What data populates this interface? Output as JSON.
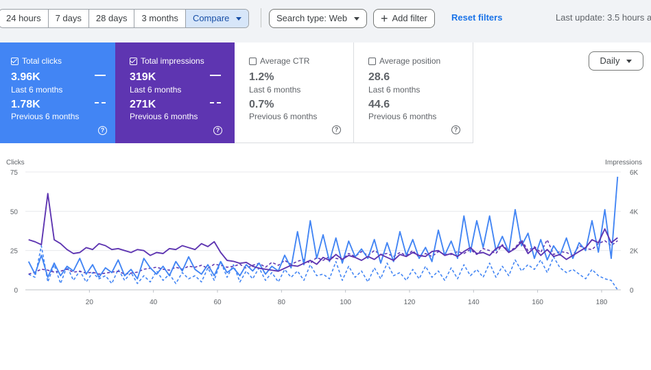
{
  "toolbar": {
    "date_ranges": [
      {
        "label": "24 hours",
        "active": false
      },
      {
        "label": "7 days",
        "active": false
      },
      {
        "label": "28 days",
        "active": false
      },
      {
        "label": "3 months",
        "active": false
      },
      {
        "label": "Compare",
        "active": true
      }
    ],
    "search_type": "Search type: Web",
    "add_filter": "Add filter",
    "reset_filters": "Reset filters",
    "last_update": "Last update: 3.5 hours a"
  },
  "metrics": [
    {
      "label": "Total clicks",
      "checked": true,
      "value": "3.96K",
      "value_caption": "Last 6 months",
      "prev_value": "1.78K",
      "prev_caption": "Previous 6 months",
      "color": "#4285f4"
    },
    {
      "label": "Total impressions",
      "checked": true,
      "value": "319K",
      "value_caption": "Last 6 months",
      "prev_value": "271K",
      "prev_caption": "Previous 6 months",
      "color": "#5e35b1"
    },
    {
      "label": "Average CTR",
      "checked": false,
      "value": "1.2%",
      "value_caption": "Last 6 months",
      "prev_value": "0.7%",
      "prev_caption": "Previous 6 months",
      "color": "#ffffff"
    },
    {
      "label": "Average position",
      "checked": false,
      "value": "28.6",
      "value_caption": "Last 6 months",
      "prev_value": "44.6",
      "prev_caption": "Previous 6 months",
      "color": "#ffffff"
    }
  ],
  "granularity": "Daily",
  "chart_data": {
    "type": "line",
    "ylabel_left": "Clicks",
    "ylabel_right": "Impressions",
    "y_left_ticks": [
      "0",
      "25",
      "50",
      "75"
    ],
    "y_right_ticks": [
      "0",
      "2K",
      "4K",
      "6K"
    ],
    "x_ticks": [
      "20",
      "40",
      "60",
      "80",
      "100",
      "120",
      "140",
      "160",
      "180"
    ],
    "ylim_left": [
      0,
      75
    ],
    "ylim_right": [
      0,
      6000
    ],
    "xlim": [
      0,
      186
    ],
    "grid": true,
    "series": [
      {
        "axis": "left",
        "style": "solid",
        "color": "#4285f4",
        "x": [
          1,
          3,
          5,
          7,
          9,
          11,
          13,
          15,
          17,
          19,
          21,
          23,
          25,
          27,
          29,
          31,
          33,
          35,
          37,
          39,
          41,
          43,
          45,
          47,
          49,
          51,
          53,
          55,
          57,
          59,
          61,
          63,
          65,
          67,
          69,
          71,
          73,
          75,
          77,
          79,
          81,
          83,
          85,
          87,
          89,
          91,
          93,
          95,
          97,
          99,
          101,
          103,
          105,
          107,
          109,
          111,
          113,
          115,
          117,
          119,
          121,
          123,
          125,
          127,
          129,
          131,
          133,
          135,
          137,
          139,
          141,
          143,
          145,
          147,
          149,
          151,
          153,
          155,
          157,
          159,
          161,
          163,
          165,
          167,
          169,
          171,
          173,
          175,
          177,
          179,
          181,
          183,
          185
        ],
        "y": [
          18,
          10,
          22,
          8,
          17,
          9,
          15,
          12,
          20,
          10,
          16,
          8,
          14,
          11,
          19,
          9,
          13,
          7,
          20,
          14,
          10,
          15,
          9,
          18,
          12,
          21,
          13,
          10,
          16,
          9,
          18,
          11,
          14,
          9,
          16,
          12,
          17,
          10,
          15,
          12,
          22,
          14,
          37,
          16,
          44,
          20,
          35,
          18,
          33,
          17,
          31,
          21,
          26,
          20,
          32,
          17,
          30,
          18,
          37,
          22,
          32,
          20,
          27,
          18,
          38,
          22,
          31,
          20,
          47,
          24,
          44,
          27,
          47,
          25,
          34,
          24,
          51,
          28,
          36,
          20,
          32,
          19,
          28,
          22,
          33,
          20,
          30,
          25,
          44,
          24,
          51,
          20,
          72
        ]
      },
      {
        "axis": "right",
        "style": "solid",
        "color": "#5e35b1",
        "x": [
          1,
          3,
          5,
          7,
          9,
          11,
          13,
          15,
          17,
          19,
          21,
          23,
          25,
          27,
          29,
          31,
          33,
          35,
          37,
          39,
          41,
          43,
          45,
          47,
          49,
          51,
          53,
          55,
          57,
          59,
          61,
          63,
          65,
          67,
          69,
          71,
          73,
          75,
          77,
          79,
          81,
          83,
          85,
          87,
          89,
          91,
          93,
          95,
          97,
          99,
          101,
          103,
          105,
          107,
          109,
          111,
          113,
          115,
          117,
          119,
          121,
          123,
          125,
          127,
          129,
          131,
          133,
          135,
          137,
          139,
          141,
          143,
          145,
          147,
          149,
          151,
          153,
          155,
          157,
          159,
          161,
          163,
          165,
          167,
          169,
          171,
          173,
          175,
          177,
          179,
          181,
          183,
          185
        ],
        "y": [
          2550,
          2450,
          2300,
          4900,
          2550,
          2350,
          2050,
          1850,
          1900,
          2150,
          2050,
          2350,
          2250,
          2050,
          2100,
          2000,
          1900,
          2050,
          2000,
          1750,
          1900,
          1850,
          2100,
          2050,
          2250,
          2150,
          2050,
          2350,
          2200,
          2450,
          1900,
          1500,
          1450,
          1350,
          1400,
          1200,
          1100,
          1050,
          1000,
          950,
          1100,
          1250,
          1200,
          1350,
          1500,
          1300,
          1650,
          1500,
          1800,
          1550,
          1750,
          1650,
          1500,
          1700,
          1550,
          1800,
          1650,
          1500,
          1800,
          1700,
          1900,
          1750,
          1700,
          1950,
          2000,
          1750,
          1850,
          1700,
          1950,
          2150,
          1850,
          1900,
          1750,
          2100,
          2250,
          1900,
          2100,
          2450,
          1850,
          2150,
          1750,
          2050,
          1700,
          1800,
          1550,
          1750,
          1950,
          2150,
          2550,
          2400,
          3100,
          2400,
          2650
        ]
      },
      {
        "axis": "left",
        "style": "dashed",
        "color": "#4285f4",
        "x": [
          1,
          3,
          5,
          7,
          9,
          11,
          13,
          15,
          17,
          19,
          21,
          23,
          25,
          27,
          29,
          31,
          33,
          35,
          37,
          39,
          41,
          43,
          45,
          47,
          49,
          51,
          53,
          55,
          57,
          59,
          61,
          63,
          65,
          67,
          69,
          71,
          73,
          75,
          77,
          79,
          81,
          83,
          85,
          87,
          89,
          91,
          93,
          95,
          97,
          99,
          101,
          103,
          105,
          107,
          109,
          111,
          113,
          115,
          117,
          119,
          121,
          123,
          125,
          127,
          129,
          131,
          133,
          135,
          137,
          139,
          141,
          143,
          145,
          147,
          149,
          151,
          153,
          155,
          157,
          159,
          161,
          163,
          165,
          167,
          169,
          171,
          173,
          175,
          177,
          179,
          181,
          183,
          185
        ],
        "y": [
          10,
          8,
          28,
          5,
          16,
          4,
          15,
          6,
          12,
          5,
          11,
          7,
          9,
          4,
          13,
          6,
          11,
          4,
          9,
          5,
          12,
          6,
          10,
          4,
          11,
          7,
          9,
          5,
          14,
          6,
          18,
          8,
          16,
          5,
          12,
          7,
          14,
          6,
          11,
          5,
          13,
          8,
          12,
          6,
          16,
          9,
          10,
          7,
          18,
          6,
          15,
          8,
          12,
          5,
          14,
          7,
          17,
          9,
          11,
          6,
          13,
          7,
          15,
          8,
          12,
          6,
          14,
          7,
          16,
          9,
          13,
          8,
          17,
          8,
          15,
          9,
          19,
          12,
          16,
          13,
          19,
          11,
          21,
          14,
          11,
          13,
          10,
          7,
          13,
          9,
          7,
          6,
          0
        ]
      },
      {
        "axis": "right",
        "style": "dashed",
        "color": "#5e35b1",
        "x": [
          1,
          3,
          5,
          7,
          9,
          11,
          13,
          15,
          17,
          19,
          21,
          23,
          25,
          27,
          29,
          31,
          33,
          35,
          37,
          39,
          41,
          43,
          45,
          47,
          49,
          51,
          53,
          55,
          57,
          59,
          61,
          63,
          65,
          67,
          69,
          71,
          73,
          75,
          77,
          79,
          81,
          83,
          85,
          87,
          89,
          91,
          93,
          95,
          97,
          99,
          101,
          103,
          105,
          107,
          109,
          111,
          113,
          115,
          117,
          119,
          121,
          123,
          125,
          127,
          129,
          131,
          133,
          135,
          137,
          139,
          141,
          143,
          145,
          147,
          149,
          151,
          153,
          155,
          157,
          159,
          161,
          163,
          165,
          167,
          169,
          171,
          173,
          175,
          177,
          179,
          181,
          183,
          185
        ],
        "y": [
          800,
          900,
          1050,
          1000,
          900,
          950,
          1050,
          900,
          950,
          850,
          900,
          800,
          850,
          900,
          950,
          800,
          850,
          900,
          1050,
          1100,
          1150,
          1050,
          1000,
          1150,
          1050,
          1200,
          1150,
          1250,
          1100,
          1300,
          1250,
          1150,
          1200,
          1300,
          1100,
          1250,
          1350,
          1150,
          1400,
          1250,
          1500,
          1300,
          1450,
          1550,
          1350,
          1650,
          1500,
          1700,
          1600,
          1550,
          1850,
          1700,
          1950,
          1750,
          2000,
          1800,
          1850,
          1700,
          1900,
          1750,
          2000,
          1650,
          1850,
          1700,
          1950,
          1800,
          1800,
          1950,
          1850,
          2050,
          1800,
          2100,
          2000,
          1850,
          2300,
          1950,
          2150,
          2550,
          2000,
          2200,
          1900,
          2550,
          1800,
          1950,
          1900,
          1750,
          2250,
          2100,
          2050,
          2350,
          2500,
          2250,
          2500
        ]
      }
    ]
  }
}
